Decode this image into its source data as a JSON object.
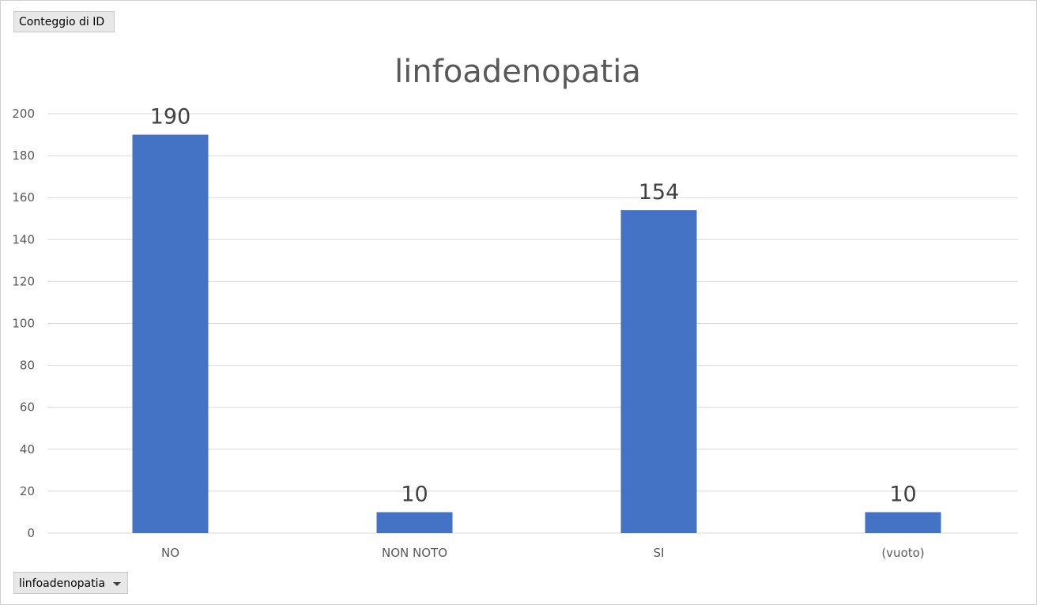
{
  "pivot": {
    "value_field_label": "Conteggio di ID",
    "axis_field_label": "linfoadenopatia"
  },
  "chart_data": {
    "type": "bar",
    "title": "linfoadenopatia",
    "xlabel": "",
    "ylabel": "",
    "categories": [
      "NO",
      "NON NOTO",
      "SI",
      "(vuoto)"
    ],
    "values": [
      190,
      10,
      154,
      10
    ],
    "ylim": [
      0,
      200
    ],
    "ytick_step": 20,
    "grid": true,
    "legend": "none",
    "bar_color": "#4472c4",
    "data_labels": true
  }
}
